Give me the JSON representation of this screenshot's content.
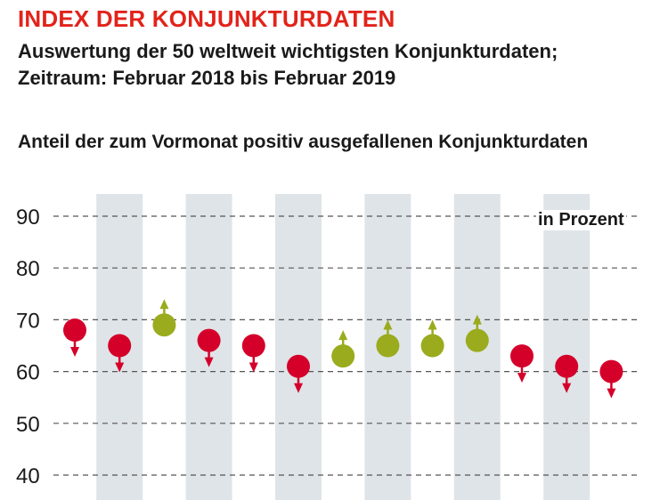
{
  "header": {
    "title": "INDEX DER KONJUNKTURDATEN",
    "subtitle_line1": "Auswertung der 50 weltweit wichtigsten Konjunkturdaten;",
    "subtitle_line2": "Zeitraum: Februar 2018 bis Februar 2019",
    "chart_heading": "Anteil der zum Vormonat positiv ausgefallenen Konjunkturdaten"
  },
  "colors": {
    "negative": "#d4002a",
    "positive": "#9aab1d",
    "band": "#dfe4e8",
    "grid": "#555555"
  },
  "chart_data": {
    "type": "scatter",
    "title": "Anteil der zum Vormonat positiv ausgefallenen Konjunkturdaten",
    "unit_label": "in Prozent",
    "ylim": [
      40,
      90
    ],
    "yticks": [
      40,
      50,
      60,
      70,
      80,
      90
    ],
    "grid": true,
    "series": [
      {
        "values": [
          68,
          65,
          69,
          66,
          65,
          61,
          63,
          65,
          65,
          66,
          63,
          61,
          60
        ],
        "direction": [
          "down",
          "down",
          "up",
          "down",
          "down",
          "down",
          "up",
          "up",
          "up",
          "up",
          "down",
          "down",
          "down"
        ]
      }
    ],
    "legend": "none"
  }
}
